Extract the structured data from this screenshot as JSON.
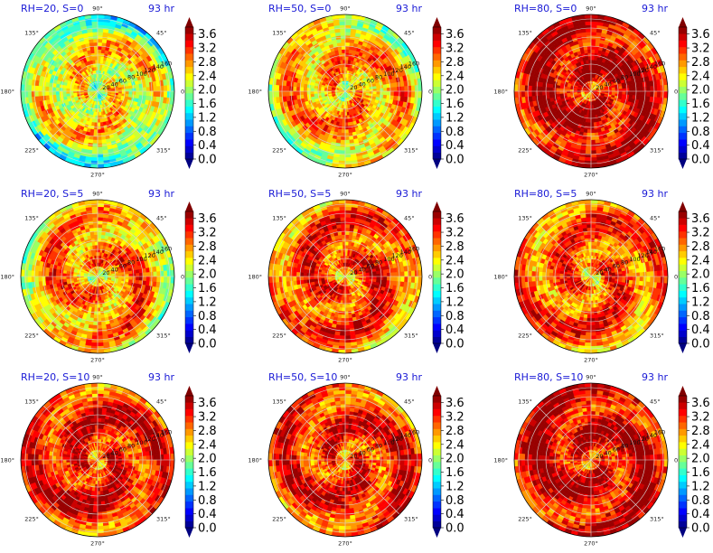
{
  "chart_data": {
    "type": "heatmap",
    "projection": "polar",
    "layout": {
      "rows": 3,
      "cols": 3
    },
    "colormap": "jet",
    "angular_ticks": [
      "0°",
      "45°",
      "90°",
      "135°",
      "180°",
      "225°",
      "270°",
      "315°"
    ],
    "radial_ticks": [
      "20",
      "40",
      "60",
      "80",
      "100",
      "120",
      "140",
      "160"
    ],
    "radial_range": [
      0,
      170
    ],
    "colorbar": {
      "ticks": [
        "0.0",
        "0.4",
        "0.8",
        "1.2",
        "1.6",
        "2.0",
        "2.4",
        "2.8",
        "3.2",
        "3.6"
      ],
      "range": [
        0,
        3.8
      ],
      "extend": "both",
      "levels": [
        0,
        0.2,
        0.4,
        0.6,
        0.8,
        1.0,
        1.2,
        1.4,
        1.6,
        1.8,
        2.0,
        2.2,
        2.4,
        2.6,
        2.8,
        3.0,
        3.2,
        3.4,
        3.6,
        3.8
      ]
    },
    "panels": [
      {
        "title": "RH=20, S=0",
        "time": "93 hr",
        "rh": 20,
        "s": 0,
        "mean_level": 2.6
      },
      {
        "title": "RH=50, S=0",
        "time": "93 hr",
        "rh": 50,
        "s": 0,
        "mean_level": 2.9
      },
      {
        "title": "RH=80, S=0",
        "time": "93 hr",
        "rh": 80,
        "s": 0,
        "mean_level": 3.7
      },
      {
        "title": "RH=20, S=5",
        "time": "93 hr",
        "rh": 20,
        "s": 5,
        "mean_level": 3.0
      },
      {
        "title": "RH=50, S=5",
        "time": "93 hr",
        "rh": 50,
        "s": 5,
        "mean_level": 3.3
      },
      {
        "title": "RH=80, S=5",
        "time": "93 hr",
        "rh": 80,
        "s": 5,
        "mean_level": 3.2
      },
      {
        "title": "RH=20, S=10",
        "time": "93 hr",
        "rh": 20,
        "s": 10,
        "mean_level": 3.5
      },
      {
        "title": "RH=50, S=10",
        "time": "93 hr",
        "rh": 50,
        "s": 10,
        "mean_level": 3.4
      },
      {
        "title": "RH=80, S=10",
        "time": "93 hr",
        "rh": 80,
        "s": 10,
        "mean_level": 3.6
      }
    ]
  }
}
